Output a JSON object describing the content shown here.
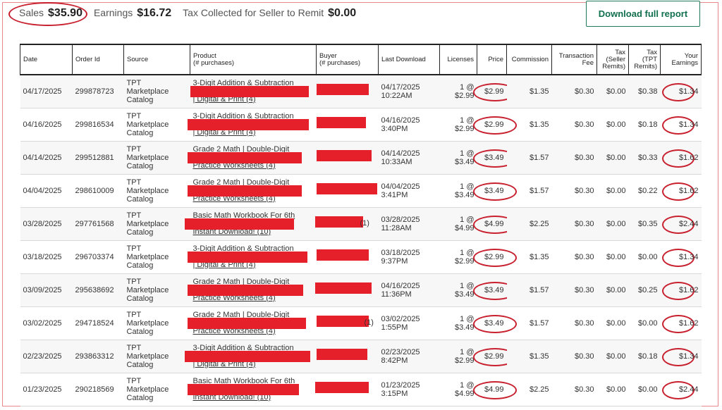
{
  "summary": {
    "sales_label": "Sales",
    "sales_value": "$35.90",
    "earnings_label": "Earnings",
    "earnings_value": "$16.72",
    "tax_label": "Tax Collected for Seller to Remit",
    "tax_value": "$0.00"
  },
  "download_button_label": "Download full report",
  "table": {
    "headers": {
      "date": "Date",
      "order_id": "Order Id",
      "source": "Source",
      "product_line1": "Product",
      "product_line2": "(# purchases)",
      "buyer_line1": "Buyer",
      "buyer_line2": "(# purchases)",
      "last_download": "Last Download",
      "licenses": "Licenses",
      "price": "Price",
      "commission": "Commission",
      "transaction_fee_line1": "Transaction",
      "transaction_fee_line2": "Fee",
      "tax_seller_line1": "Tax",
      "tax_seller_line2": "(Seller",
      "tax_seller_line3": "Remits)",
      "tax_tpt_line1": "Tax",
      "tax_tpt_line2": "(TPT",
      "tax_tpt_line3": "Remits)",
      "earnings_line1": "Your",
      "earnings_line2": "Earnings"
    },
    "rows": [
      {
        "date": "04/17/2025",
        "order_id": "299878723",
        "source": [
          "TPT",
          "Marketplace",
          "Catalog"
        ],
        "product": [
          "3-Digit Addition & Subtraction",
          "",
          "| Digital & Print (4)"
        ],
        "buyer_suffix": "",
        "last_download": [
          "04/17/2025",
          "10:22AM"
        ],
        "licenses": [
          "1 @",
          "$2.99"
        ],
        "price": "$2.99",
        "commission": "$1.35",
        "fee": "$0.30",
        "tax_seller": "$0.00",
        "tax_tpt": "$0.38",
        "earnings": "$1.34"
      },
      {
        "date": "04/16/2025",
        "order_id": "299816534",
        "source": [
          "TPT",
          "Marketplace",
          "Catalog"
        ],
        "product": [
          "3-Digit Addition & Subtraction",
          "",
          "| Digital & Print (4)"
        ],
        "buyer_suffix": "",
        "last_download": [
          "04/16/2025",
          "3:40PM"
        ],
        "licenses": [
          "1 @",
          "$2.99"
        ],
        "price": "$2.99",
        "commission": "$1.35",
        "fee": "$0.30",
        "tax_seller": "$0.00",
        "tax_tpt": "$0.18",
        "earnings": "$1.34"
      },
      {
        "date": "04/14/2025",
        "order_id": "299512881",
        "source": [
          "TPT",
          "Marketplace",
          "Catalog"
        ],
        "product": [
          "Grade 2 Math | Double-Digit",
          "",
          "Practice Worksheets (4)"
        ],
        "buyer_suffix": "",
        "last_download": [
          "04/14/2025",
          "10:33AM"
        ],
        "licenses": [
          "1 @",
          "$3.49"
        ],
        "price": "$3.49",
        "commission": "$1.57",
        "fee": "$0.30",
        "tax_seller": "$0.00",
        "tax_tpt": "$0.33",
        "earnings": "$1.62"
      },
      {
        "date": "04/04/2025",
        "order_id": "298610009",
        "source": [
          "TPT",
          "Marketplace",
          "Catalog"
        ],
        "product": [
          "Grade 2 Math | Double-Digit",
          "",
          "Practice Worksheets (4)"
        ],
        "buyer_suffix": "",
        "last_download": [
          "04/04/2025",
          "3:41PM"
        ],
        "licenses": [
          "1 @",
          "$3.49"
        ],
        "price": "$3.49",
        "commission": "$1.57",
        "fee": "$0.30",
        "tax_seller": "$0.00",
        "tax_tpt": "$0.22",
        "earnings": "$1.62"
      },
      {
        "date": "03/28/2025",
        "order_id": "297761568",
        "source": [
          "TPT",
          "Marketplace",
          "Catalog"
        ],
        "product": [
          "Basic Math Workbook For 6th",
          "",
          "Instant Download! (10)"
        ],
        "buyer_suffix": "(1)",
        "last_download": [
          "03/28/2025",
          "11:28AM"
        ],
        "licenses": [
          "1 @",
          "$4.99"
        ],
        "price": "$4.99",
        "commission": "$2.25",
        "fee": "$0.30",
        "tax_seller": "$0.00",
        "tax_tpt": "$0.35",
        "earnings": "$2.44"
      },
      {
        "date": "03/18/2025",
        "order_id": "296703374",
        "source": [
          "TPT",
          "Marketplace",
          "Catalog"
        ],
        "product": [
          "3-Digit Addition & Subtraction",
          "",
          "| Digital & Print (4)"
        ],
        "buyer_suffix": "",
        "last_download": [
          "03/18/2025",
          "9:37PM"
        ],
        "licenses": [
          "1 @",
          "$2.99"
        ],
        "price": "$2.99",
        "commission": "$1.35",
        "fee": "$0.30",
        "tax_seller": "$0.00",
        "tax_tpt": "$0.00",
        "earnings": "$1.34"
      },
      {
        "date": "03/09/2025",
        "order_id": "295638692",
        "source": [
          "TPT",
          "Marketplace",
          "Catalog"
        ],
        "product": [
          "Grade 2 Math | Double-Digit",
          "",
          "Practice Worksheets (4)"
        ],
        "buyer_suffix": "",
        "last_download": [
          "04/16/2025",
          "11:36PM"
        ],
        "licenses": [
          "1 @",
          "$3.49"
        ],
        "price": "$3.49",
        "commission": "$1.57",
        "fee": "$0.30",
        "tax_seller": "$0.00",
        "tax_tpt": "$0.25",
        "earnings": "$1.62"
      },
      {
        "date": "03/02/2025",
        "order_id": "294718524",
        "source": [
          "TPT",
          "Marketplace",
          "Catalog"
        ],
        "product": [
          "Grade 2 Math | Double-Digit",
          "",
          "Practice Worksheets (4)"
        ],
        "buyer_suffix": "(1)",
        "last_download": [
          "03/02/2025",
          "1:55PM"
        ],
        "licenses": [
          "1 @",
          "$3.49"
        ],
        "price": "$3.49",
        "commission": "$1.57",
        "fee": "$0.30",
        "tax_seller": "$0.00",
        "tax_tpt": "$0.00",
        "earnings": "$1.62"
      },
      {
        "date": "02/23/2025",
        "order_id": "293863312",
        "source": [
          "TPT",
          "Marketplace",
          "Catalog"
        ],
        "product": [
          "3-Digit Addition & Subtraction",
          "",
          "| Digital & Print (4)"
        ],
        "buyer_suffix": "",
        "last_download": [
          "02/23/2025",
          "8:42PM"
        ],
        "licenses": [
          "1 @",
          "$2.99"
        ],
        "price": "$2.99",
        "commission": "$1.35",
        "fee": "$0.30",
        "tax_seller": "$0.00",
        "tax_tpt": "$0.18",
        "earnings": "$1.34"
      },
      {
        "date": "01/23/2025",
        "order_id": "290218569",
        "source": [
          "TPT",
          "Marketplace",
          "Catalog"
        ],
        "product": [
          "Basic Math Workbook For 6th",
          "",
          "Instant Download! (10)"
        ],
        "buyer_suffix": "",
        "last_download": [
          "01/23/2025",
          "3:15PM"
        ],
        "licenses": [
          "1 @",
          "$4.99"
        ],
        "price": "$4.99",
        "commission": "$2.25",
        "fee": "$0.30",
        "tax_seller": "$0.00",
        "tax_tpt": "$0.00",
        "earnings": "$2.44"
      }
    ]
  },
  "colors": {
    "annotation_red": "#c8202e",
    "redaction_red": "#e5202b",
    "button_green": "#12704f"
  }
}
